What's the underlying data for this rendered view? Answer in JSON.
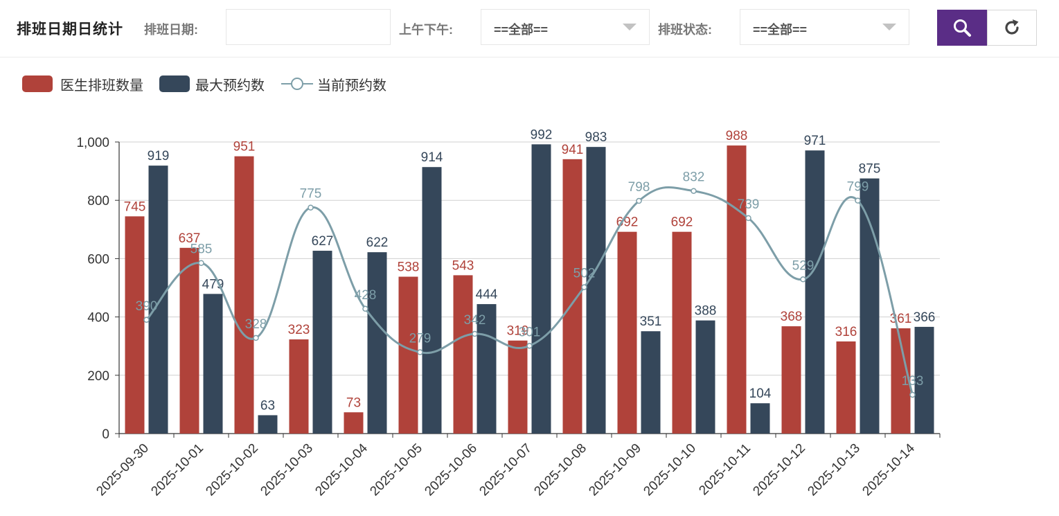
{
  "header": {
    "title": "排班日期日统计",
    "date_label": "排班日期:",
    "date_value": "",
    "ampm_label": "上午下午:",
    "ampm_value": "==全部==",
    "status_label": "排班状态:",
    "status_value": "==全部==",
    "search_icon": "search-icon",
    "reset_icon": "refresh-icon"
  },
  "colors": {
    "doctor": "#b0423a",
    "max": "#35475a",
    "current": "#7d9ea8",
    "accent": "#5a2d86"
  },
  "chart_data": {
    "type": "bar",
    "categories": [
      "2025-09-30",
      "2025-10-01",
      "2025-10-02",
      "2025-10-03",
      "2025-10-04",
      "2025-10-05",
      "2025-10-06",
      "2025-10-07",
      "2025-10-08",
      "2025-10-09",
      "2025-10-10",
      "2025-10-11",
      "2025-10-12",
      "2025-10-13",
      "2025-10-14"
    ],
    "ylim": [
      0,
      1000
    ],
    "yticks": [
      0,
      200,
      400,
      600,
      800,
      1000
    ],
    "ytick_labels": [
      "0",
      "200",
      "400",
      "600",
      "800",
      "1,000"
    ],
    "grid": true,
    "legend_position": "top-left",
    "series": [
      {
        "name": "医生排班数量",
        "type": "bar",
        "values": [
          745,
          637,
          951,
          323,
          73,
          538,
          543,
          319,
          941,
          692,
          692,
          988,
          368,
          316,
          361
        ]
      },
      {
        "name": "最大预约数",
        "type": "bar",
        "values": [
          919,
          479,
          63,
          627,
          622,
          914,
          444,
          992,
          983,
          351,
          388,
          104,
          971,
          875,
          366
        ]
      },
      {
        "name": "当前预约数",
        "type": "line",
        "values": [
          390,
          585,
          328,
          775,
          428,
          279,
          342,
          301,
          502,
          798,
          832,
          739,
          529,
          799,
          133
        ]
      }
    ]
  }
}
